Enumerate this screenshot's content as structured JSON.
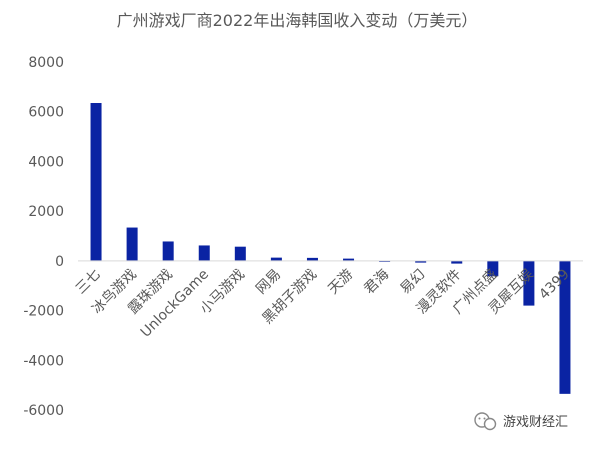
{
  "chart_data": {
    "type": "bar",
    "title": "广州游戏厂商2022年出海韩国收入变动（万美元）",
    "categories": [
      "三七",
      "冰鸟游戏",
      "露珠游戏",
      "UnlockGame",
      "小马游戏",
      "网易",
      "黑胡子游戏",
      "天游",
      "君海",
      "易幻",
      "漫灵软件",
      "广州点盛",
      "灵犀互娱",
      "4399"
    ],
    "values": [
      6350,
      1340,
      780,
      620,
      570,
      130,
      120,
      90,
      -40,
      -70,
      -110,
      -620,
      -1800,
      -5350
    ],
    "yticks": [
      8000,
      6000,
      4000,
      2000,
      0,
      -2000,
      -4000,
      -6000
    ],
    "ylim": [
      -6000,
      8000
    ],
    "bar_color": "#0a23a3",
    "grid": false,
    "legend": "none"
  },
  "watermark": {
    "text": "游戏财经汇",
    "icon": "wechat-icon"
  }
}
